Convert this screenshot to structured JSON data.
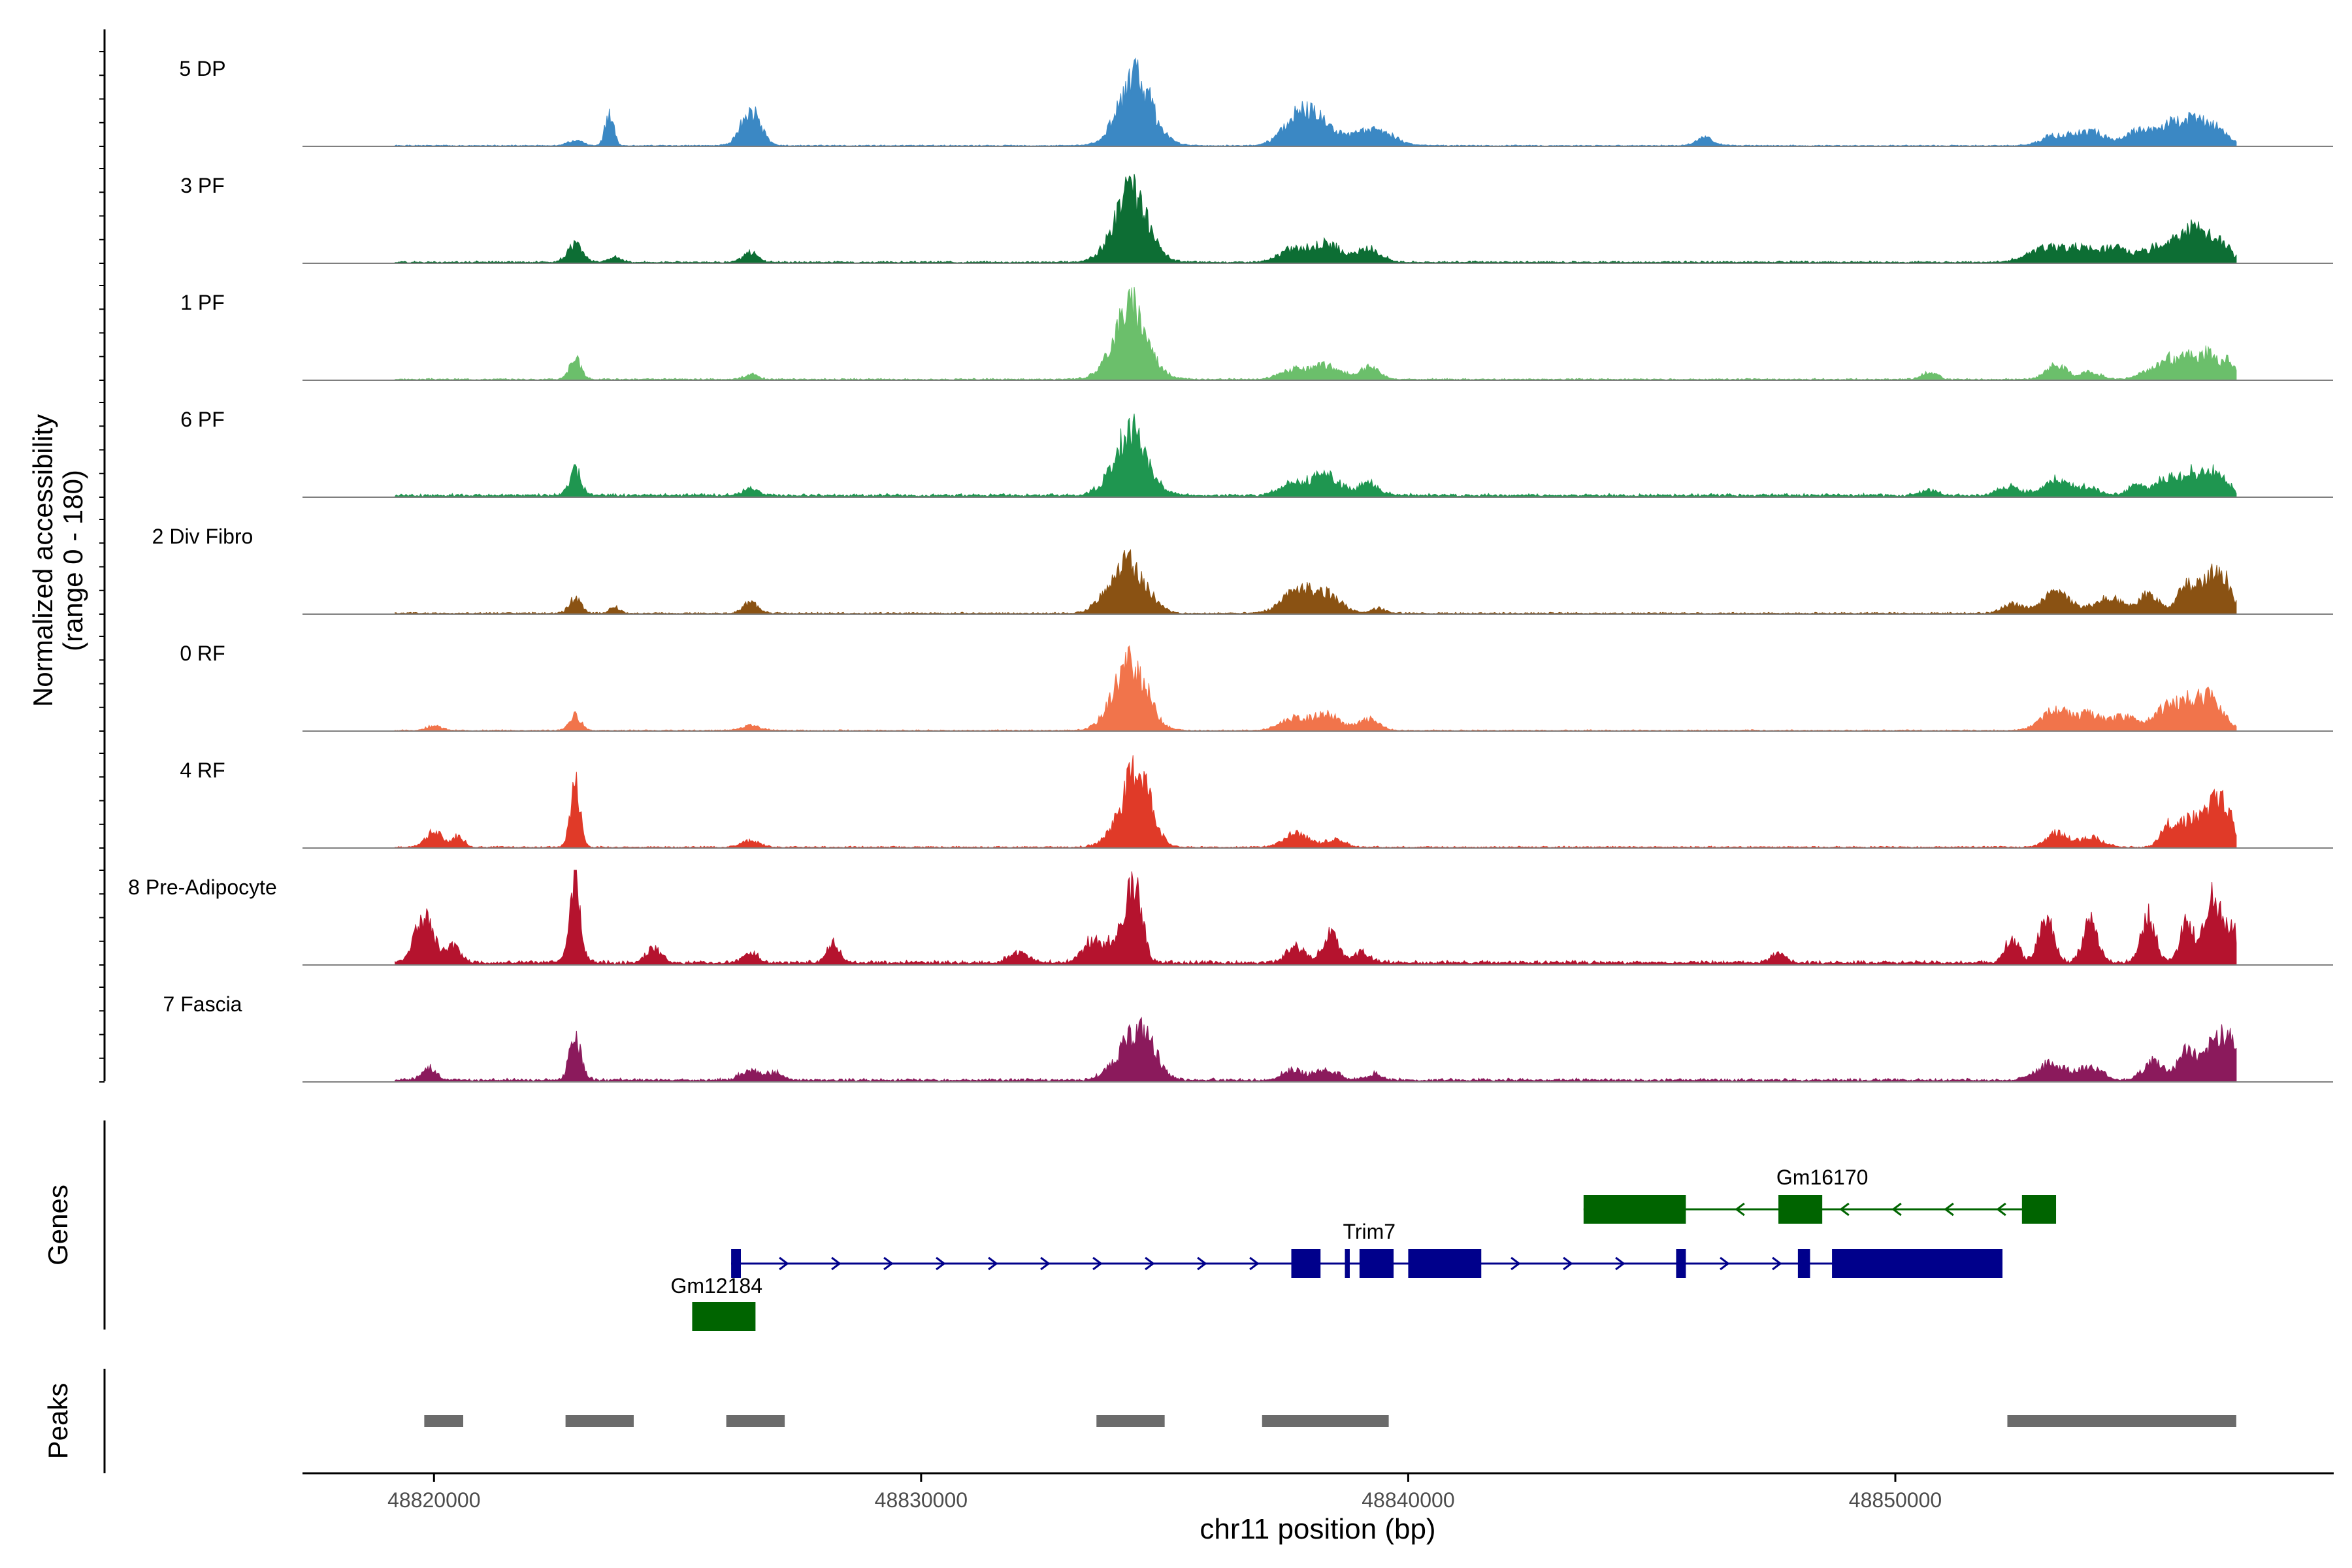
{
  "chart_data": {
    "type": "area",
    "title": "",
    "xlabel": "chr11 position (bp)",
    "ylabel_line1": "Normalized accessibility",
    "ylabel_line2": "(range 0 - 180)",
    "ylim": [
      0,
      180
    ],
    "xlim": [
      48817300,
      48859000
    ],
    "x_ticks": [
      48820000,
      48830000,
      48840000,
      48850000
    ],
    "x_tick_labels": [
      "48820000",
      "48830000",
      "48840000",
      "48850000"
    ],
    "signal_range": [
      48819200,
      48857000
    ],
    "panel_labels": {
      "genes": "Genes",
      "peaks": "Peaks"
    },
    "tracks": [
      {
        "name": "5 DP",
        "color": "#3b88c4",
        "base": 1.5,
        "peaks": [
          [
            48822900,
            160,
            10
          ],
          [
            48823600,
            90,
            60
          ],
          [
            48826500,
            200,
            70
          ],
          [
            48834400,
            420,
            40
          ],
          [
            48834400,
            300,
            100
          ],
          [
            48837700,
            300,
            50
          ],
          [
            48838200,
            350,
            45
          ],
          [
            48839300,
            350,
            35
          ],
          [
            48846100,
            180,
            15
          ],
          [
            48853300,
            280,
            20
          ],
          [
            48854000,
            300,
            30
          ],
          [
            48855000,
            250,
            30
          ],
          [
            48855600,
            250,
            38
          ],
          [
            48856100,
            250,
            45
          ],
          [
            48856600,
            250,
            32
          ]
        ]
      },
      {
        "name": "3 PF",
        "color": "#0d6e34",
        "base": 2.5,
        "peaks": [
          [
            48822900,
            150,
            35
          ],
          [
            48823700,
            120,
            10
          ],
          [
            48826500,
            150,
            20
          ],
          [
            48834300,
            400,
            45
          ],
          [
            48834300,
            300,
            100
          ],
          [
            48837600,
            250,
            25
          ],
          [
            48838300,
            300,
            38
          ],
          [
            48839200,
            250,
            25
          ],
          [
            48853100,
            350,
            30
          ],
          [
            48853800,
            250,
            25
          ],
          [
            48854500,
            300,
            30
          ],
          [
            48855200,
            200,
            20
          ],
          [
            48855600,
            200,
            35
          ],
          [
            48856000,
            200,
            42
          ],
          [
            48856300,
            250,
            45
          ],
          [
            48856700,
            200,
            30
          ]
        ]
      },
      {
        "name": "1 PF",
        "color": "#6bbf6b",
        "base": 2.0,
        "peaks": [
          [
            48822900,
            120,
            40
          ],
          [
            48826500,
            150,
            10
          ],
          [
            48834300,
            400,
            52
          ],
          [
            48834300,
            300,
            100
          ],
          [
            48837600,
            250,
            18
          ],
          [
            48838300,
            300,
            28
          ],
          [
            48839200,
            200,
            25
          ],
          [
            48850700,
            150,
            15
          ],
          [
            48853300,
            200,
            30
          ],
          [
            48854000,
            200,
            15
          ],
          [
            48855200,
            200,
            20
          ],
          [
            48855600,
            150,
            40
          ],
          [
            48856000,
            150,
            48
          ],
          [
            48856400,
            150,
            55
          ],
          [
            48856800,
            150,
            40
          ]
        ]
      },
      {
        "name": "6 PF",
        "color": "#1f9650",
        "base": 4.0,
        "peaks": [
          [
            48822900,
            120,
            50
          ],
          [
            48826500,
            150,
            15
          ],
          [
            48834300,
            400,
            40
          ],
          [
            48834300,
            300,
            90
          ],
          [
            48837600,
            250,
            25
          ],
          [
            48838300,
            300,
            40
          ],
          [
            48839200,
            200,
            25
          ],
          [
            48850700,
            150,
            10
          ],
          [
            48852300,
            200,
            18
          ],
          [
            48853300,
            300,
            30
          ],
          [
            48854000,
            200,
            15
          ],
          [
            48855000,
            200,
            20
          ],
          [
            48855600,
            200,
            36
          ],
          [
            48856100,
            200,
            45
          ],
          [
            48856600,
            200,
            50
          ]
        ]
      },
      {
        "name": "2 Div Fibro",
        "color": "#8a5213",
        "base": 2.0,
        "peaks": [
          [
            48822900,
            120,
            30
          ],
          [
            48823700,
            100,
            12
          ],
          [
            48826500,
            150,
            22
          ],
          [
            48834000,
            300,
            55
          ],
          [
            48834400,
            300,
            70
          ],
          [
            48837700,
            300,
            42
          ],
          [
            48838300,
            300,
            38
          ],
          [
            48839400,
            150,
            10
          ],
          [
            48852400,
            200,
            18
          ],
          [
            48853300,
            300,
            40
          ],
          [
            48854400,
            300,
            30
          ],
          [
            48855200,
            200,
            40
          ],
          [
            48856000,
            200,
            58
          ],
          [
            48856500,
            200,
            70
          ],
          [
            48856800,
            150,
            45
          ]
        ]
      },
      {
        "name": "0 RF",
        "color": "#f1744b",
        "base": 1.5,
        "peaks": [
          [
            48820000,
            150,
            10
          ],
          [
            48822900,
            120,
            30
          ],
          [
            48826500,
            200,
            10
          ],
          [
            48834100,
            300,
            55
          ],
          [
            48834400,
            300,
            100
          ],
          [
            48837600,
            250,
            22
          ],
          [
            48838300,
            300,
            32
          ],
          [
            48839200,
            200,
            22
          ],
          [
            48853300,
            300,
            40
          ],
          [
            48854000,
            250,
            30
          ],
          [
            48854700,
            250,
            28
          ],
          [
            48855500,
            250,
            40
          ],
          [
            48856000,
            250,
            50
          ],
          [
            48856500,
            250,
            60
          ]
        ]
      },
      {
        "name": "4 RF",
        "color": "#e03a28",
        "base": 2.0,
        "peaks": [
          [
            48820000,
            180,
            30
          ],
          [
            48820500,
            120,
            22
          ],
          [
            48822900,
            100,
            130
          ],
          [
            48826500,
            200,
            12
          ],
          [
            48834200,
            300,
            60
          ],
          [
            48834500,
            250,
            120
          ],
          [
            48837700,
            250,
            28
          ],
          [
            48838500,
            200,
            15
          ],
          [
            48853300,
            200,
            30
          ],
          [
            48854000,
            250,
            20
          ],
          [
            48855600,
            150,
            40
          ],
          [
            48856000,
            200,
            55
          ],
          [
            48856500,
            200,
            80
          ],
          [
            48856800,
            150,
            60
          ]
        ]
      },
      {
        "name": "8 Pre-Adipocyte",
        "color": "#b5132e",
        "base": 5.0,
        "peaks": [
          [
            48819800,
            200,
            90
          ],
          [
            48820400,
            150,
            30
          ],
          [
            48822900,
            80,
            140
          ],
          [
            48822900,
            150,
            50
          ],
          [
            48824500,
            150,
            30
          ],
          [
            48826500,
            150,
            20
          ],
          [
            48828200,
            120,
            40
          ],
          [
            48832000,
            200,
            20
          ],
          [
            48833500,
            200,
            40
          ],
          [
            48834400,
            150,
            130
          ],
          [
            48834100,
            250,
            60
          ],
          [
            48837700,
            200,
            30
          ],
          [
            48838400,
            150,
            60
          ],
          [
            48839000,
            200,
            20
          ],
          [
            48847600,
            150,
            20
          ],
          [
            48852400,
            150,
            45
          ],
          [
            48853100,
            150,
            90
          ],
          [
            48854000,
            150,
            80
          ],
          [
            48855200,
            150,
            90
          ],
          [
            48856000,
            150,
            80
          ],
          [
            48856500,
            150,
            140
          ],
          [
            48856900,
            150,
            75
          ]
        ]
      },
      {
        "name": "7 Fascia",
        "color": "#8b1a5c",
        "base": 4.0,
        "peaks": [
          [
            48819900,
            150,
            25
          ],
          [
            48822900,
            120,
            80
          ],
          [
            48826500,
            200,
            20
          ],
          [
            48827000,
            150,
            15
          ],
          [
            48834200,
            300,
            55
          ],
          [
            48834600,
            250,
            75
          ],
          [
            48837600,
            200,
            20
          ],
          [
            48838300,
            250,
            20
          ],
          [
            48839300,
            150,
            12
          ],
          [
            48853200,
            300,
            32
          ],
          [
            48854000,
            250,
            25
          ],
          [
            48855300,
            200,
            38
          ],
          [
            48856000,
            200,
            60
          ],
          [
            48856600,
            200,
            80
          ],
          [
            48856900,
            150,
            60
          ]
        ]
      }
    ],
    "genes": [
      {
        "name": "Gm16170",
        "strand": "-",
        "color": "#006400",
        "row": 1,
        "start": 48843600,
        "end": 48853300,
        "exons": [
          [
            48843600,
            48845700
          ],
          [
            48847600,
            48848500
          ],
          [
            48852600,
            48853300
          ]
        ]
      },
      {
        "name": "Trim7",
        "strand": "+",
        "color": "#00008b",
        "row": 2,
        "start": 48826100,
        "end": 48852200,
        "exons": [
          [
            48826100,
            48826300
          ],
          [
            48837600,
            48838200
          ],
          [
            48838700,
            48838800
          ],
          [
            48839000,
            48839700
          ],
          [
            48840000,
            48841500
          ],
          [
            48845500,
            48845700
          ],
          [
            48848000,
            48848250
          ],
          [
            48848700,
            48852200
          ]
        ]
      },
      {
        "name": "Gm12184",
        "strand": "",
        "color": "#006400",
        "row": 3,
        "start": 48825300,
        "end": 48826600,
        "exons": [
          [
            48825300,
            48826600
          ]
        ]
      }
    ],
    "peaks": [
      [
        48819800,
        48820600
      ],
      [
        48822700,
        48824100
      ],
      [
        48826000,
        48827200
      ],
      [
        48833600,
        48835000
      ],
      [
        48837000,
        48839600
      ],
      [
        48852300,
        48857000
      ]
    ],
    "peak_color": "#6b6b6b"
  }
}
